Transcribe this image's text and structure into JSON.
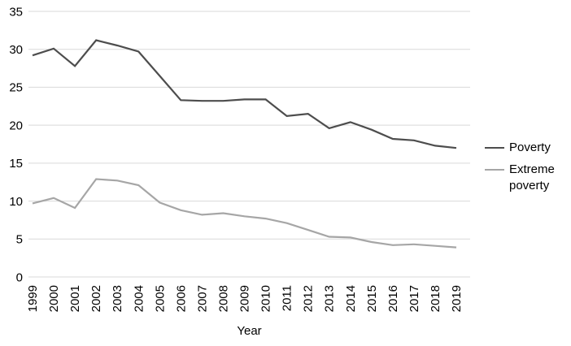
{
  "chart_data": {
    "type": "line",
    "title": "",
    "xlabel": "Year",
    "ylabel": "",
    "x": [
      1999,
      2000,
      2001,
      2002,
      2003,
      2004,
      2005,
      2006,
      2007,
      2008,
      2009,
      2010,
      2011,
      2012,
      2013,
      2014,
      2015,
      2016,
      2017,
      2018,
      2019
    ],
    "series": [
      {
        "name": "Poverty",
        "color": "#4d4d4d",
        "values": [
          29.2,
          30.1,
          27.8,
          31.2,
          30.5,
          29.7,
          26.5,
          23.3,
          23.2,
          23.2,
          23.4,
          23.4,
          21.2,
          21.5,
          19.6,
          20.4,
          19.4,
          18.2,
          18.0,
          17.3,
          17.0
        ]
      },
      {
        "name": "Extreme poverty",
        "color": "#a6a6a6",
        "values": [
          9.7,
          10.4,
          9.1,
          12.9,
          12.7,
          12.1,
          9.8,
          8.8,
          8.2,
          8.4,
          8.0,
          7.7,
          7.1,
          6.2,
          5.3,
          5.2,
          4.6,
          4.2,
          4.3,
          4.1,
          3.9
        ]
      }
    ],
    "ylim": [
      0,
      35
    ],
    "yticks": [
      0,
      5,
      10,
      15,
      20,
      25,
      30,
      35
    ],
    "grid": true,
    "legend_position": "right",
    "gridline_color": "#d9d9d9",
    "text_color": "#000000"
  }
}
